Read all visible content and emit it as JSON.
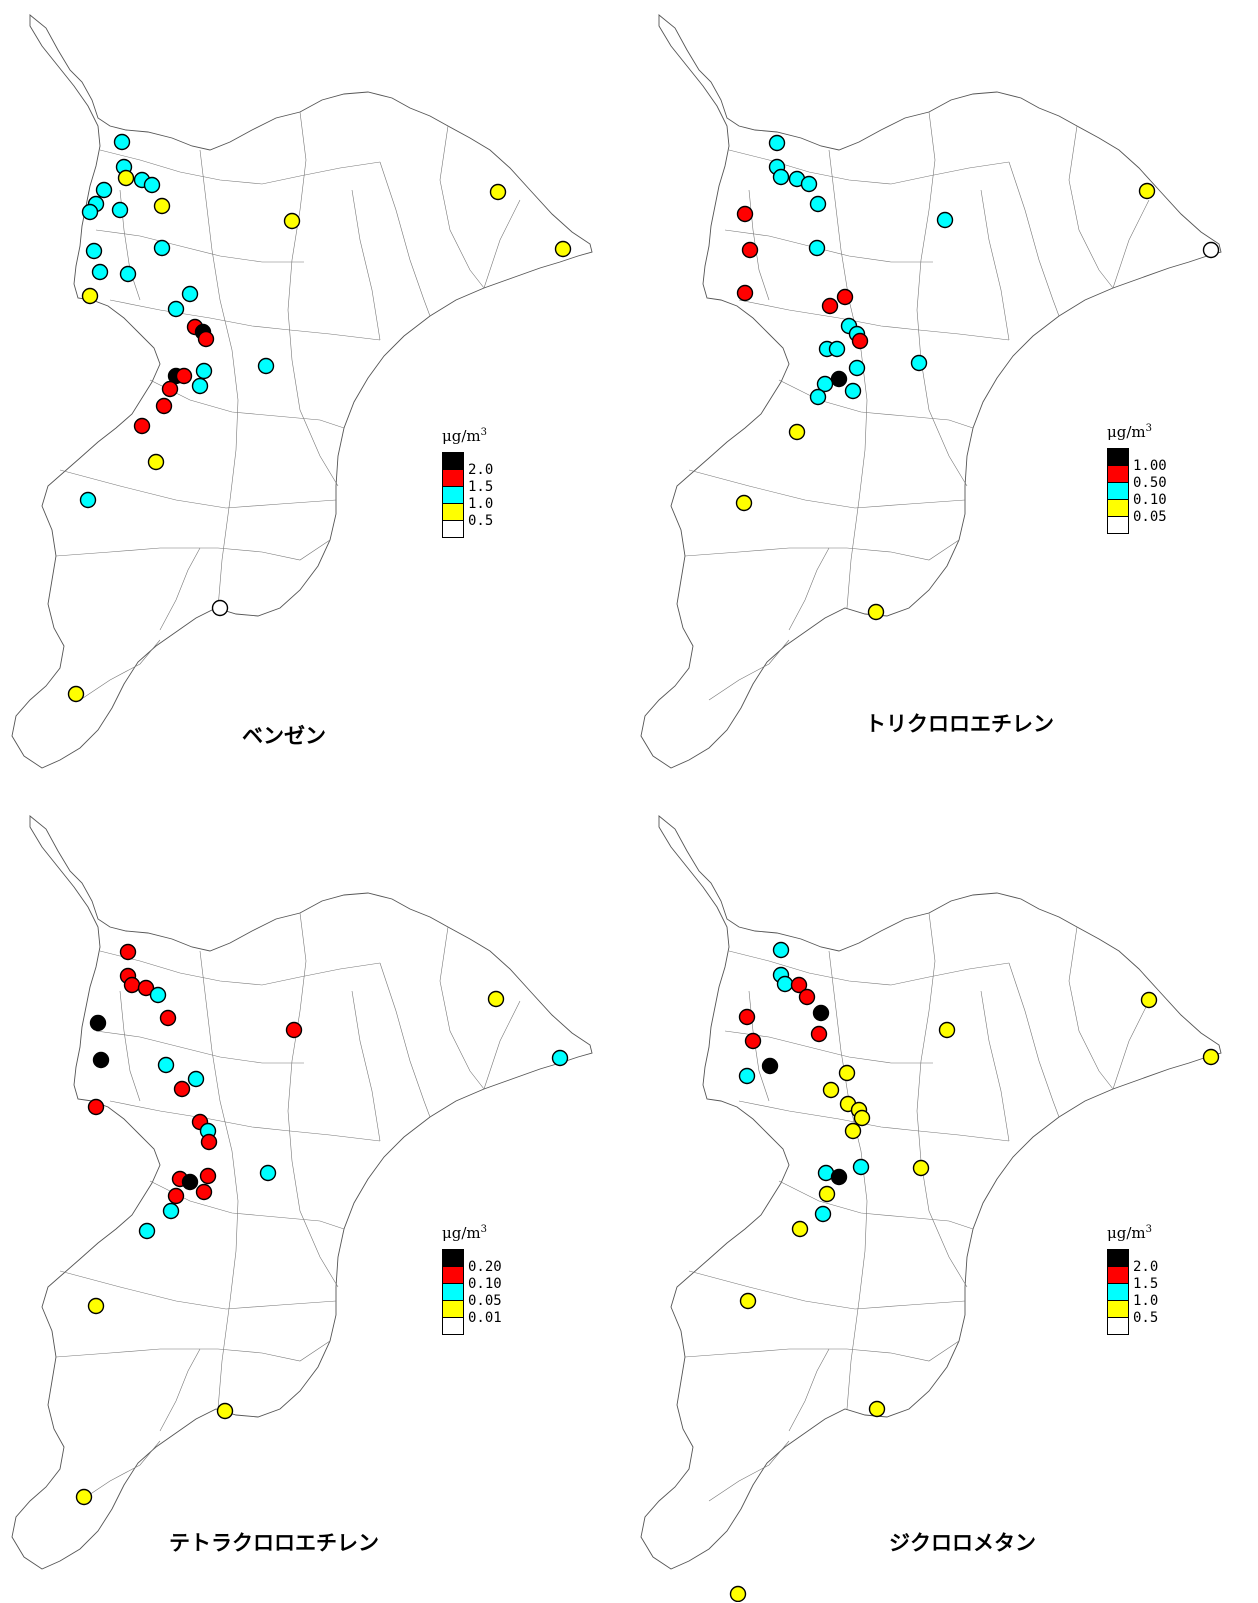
{
  "panels": [
    {
      "title": "ベンゼン",
      "unit": "μg/m",
      "unit_sup": "3",
      "legend": [
        {
          "color": "#000000",
          "label": "2.0"
        },
        {
          "color": "#ff0000",
          "label": "1.5"
        },
        {
          "color": "#00ffff",
          "label": "1.0"
        },
        {
          "color": "#ffff00",
          "label": "0.5"
        },
        {
          "color": "#ffffff",
          "label": ""
        }
      ],
      "point_classes": [
        "c",
        "c",
        "y",
        "c",
        "c",
        "c",
        "c",
        "c",
        "y",
        "c",
        "y",
        "c",
        "c",
        "c",
        "c",
        "y",
        "y",
        "y",
        "c",
        "c",
        "r",
        "k",
        "r",
        "k",
        "r",
        "c",
        "r",
        "c",
        "r",
        "r",
        "c",
        "y",
        "c",
        "o",
        "y"
      ]
    },
    {
      "title": "トリクロロエチレン",
      "unit": "μg/m",
      "unit_sup": "3",
      "legend": [
        {
          "color": "#000000",
          "label": "1.00"
        },
        {
          "color": "#ff0000",
          "label": "0.50"
        },
        {
          "color": "#00ffff",
          "label": "0.10"
        },
        {
          "color": "#ffff00",
          "label": "0.05"
        },
        {
          "color": "#ffffff",
          "label": ""
        }
      ],
      "point_classes": [
        "c",
        "c",
        "c",
        "c",
        "c",
        "c",
        "r",
        "c",
        "r",
        "c",
        "y",
        "o",
        "r",
        "r",
        "r",
        "c",
        "c",
        "r",
        "c",
        "c",
        "k",
        "c",
        "c",
        "c",
        "c",
        "c",
        "y",
        "y",
        "y"
      ]
    },
    {
      "title": "テトラクロロエチレン",
      "unit": "μg/m",
      "unit_sup": "3",
      "legend": [
        {
          "color": "#000000",
          "label": "0.20"
        },
        {
          "color": "#ff0000",
          "label": "0.10"
        },
        {
          "color": "#00ffff",
          "label": "0.05"
        },
        {
          "color": "#ffff00",
          "label": "0.01"
        },
        {
          "color": "#ffffff",
          "label": ""
        }
      ],
      "point_classes": [
        "r",
        "r",
        "r",
        "r",
        "c",
        "k",
        "r",
        "r",
        "k",
        "c",
        "r",
        "y",
        "c",
        "r",
        "c",
        "r",
        "c",
        "r",
        "r",
        "r",
        "k",
        "r",
        "r",
        "c",
        "c",
        "c",
        "y",
        "y",
        "y"
      ]
    },
    {
      "title": "ジクロロメタン",
      "unit": "μg/m",
      "unit_sup": "3",
      "legend": [
        {
          "color": "#000000",
          "label": "2.0"
        },
        {
          "color": "#ff0000",
          "label": "1.5"
        },
        {
          "color": "#00ffff",
          "label": "1.0"
        },
        {
          "color": "#ffff00",
          "label": "0.5"
        },
        {
          "color": "#ffffff",
          "label": ""
        }
      ],
      "point_classes": [
        "c",
        "c",
        "c",
        "r",
        "r",
        "r",
        "k",
        "r",
        "r",
        "k",
        "c",
        "y",
        "y",
        "y",
        "y",
        "y",
        "y",
        "y",
        "c",
        "k",
        "c",
        "y",
        "y",
        "y",
        "c",
        "y",
        "y",
        "y",
        "y",
        "y"
      ]
    }
  ],
  "colors": {
    "k": "#000000",
    "r": "#ff0000",
    "c": "#00ffff",
    "y": "#ffff00",
    "o": "#ffffff"
  }
}
